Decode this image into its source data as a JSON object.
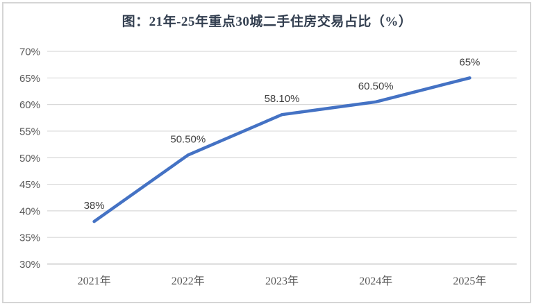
{
  "title": "图：21年-25年重点30城二手住房交易占比（%）",
  "chart_data": {
    "type": "line",
    "title": "图：21年-25年重点30城二手住房交易占比（%）",
    "categories": [
      "2021年",
      "2022年",
      "2023年",
      "2024年",
      "2025年"
    ],
    "values": [
      38,
      50.5,
      58.1,
      60.5,
      65
    ],
    "data_labels": [
      "38%",
      "50.50%",
      "58.10%",
      "60.50%",
      "65%"
    ],
    "y_ticks": [
      "70%",
      "65%",
      "60%",
      "55%",
      "50%",
      "45%",
      "40%",
      "35%",
      "30%"
    ],
    "y_tick_values": [
      70,
      65,
      60,
      55,
      50,
      45,
      40,
      35,
      30
    ],
    "ylim": [
      30,
      70
    ],
    "y_tick_step": 5,
    "xlabel": "",
    "ylabel": "",
    "grid": true,
    "legend_position": "none",
    "line_color": "#4472C4",
    "gridline_color": "#D9D9D9",
    "axis_line_color": "#C6C6C6",
    "axis_label_color": "#595959",
    "data_label_color": "#404040",
    "title_color": "#333F50",
    "border_color": "#D5D5D5"
  }
}
